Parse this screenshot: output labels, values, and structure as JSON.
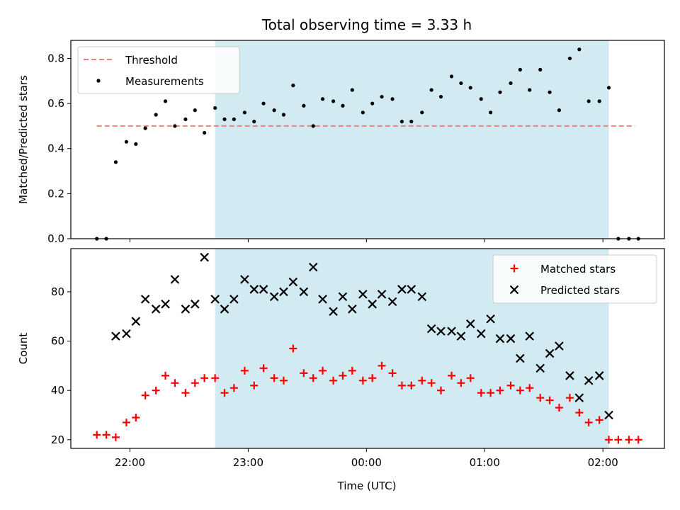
{
  "chart_data": {
    "type": "scatter",
    "title": "Total observing time = 3.33 h",
    "xlabel": "Time (UTC)",
    "x_tick_labels": [
      {
        "value": 22,
        "label": "22:00"
      },
      {
        "value": 23,
        "label": "23:00"
      },
      {
        "value": 24,
        "label": "00:00"
      },
      {
        "value": 25,
        "label": "01:00"
      },
      {
        "value": 26,
        "label": "02:00"
      }
    ],
    "xlim": [
      21.5,
      26.52
    ],
    "shaded_interval": [
      22.72,
      26.05
    ],
    "colors": {
      "shade": "#add8e6",
      "threshold": "#f08080",
      "measurements": "#000000",
      "matched": "#ff0000",
      "predicted": "#000000"
    },
    "panels": [
      {
        "ylabel": "Matched/Predicted stars",
        "ylim": [
          0,
          0.88
        ],
        "yticks": [
          "0.0",
          "0.2",
          "0.4",
          "0.6",
          "0.8"
        ],
        "ytick_values": [
          0,
          0.2,
          0.4,
          0.6,
          0.8
        ],
        "legend_position": "upper left",
        "series": [
          {
            "name": "Threshold",
            "kind": "dashed-line",
            "x": [
              21.72,
              26.27
            ],
            "y": [
              0.5,
              0.5
            ]
          },
          {
            "name": "Measurements",
            "kind": "dot",
            "x": [
              21.72,
              21.8,
              21.88,
              21.97,
              22.05,
              22.13,
              22.22,
              22.3,
              22.38,
              22.47,
              22.55,
              22.63,
              22.72,
              22.8,
              22.88,
              22.97,
              23.05,
              23.13,
              23.22,
              23.3,
              23.38,
              23.47,
              23.55,
              23.63,
              23.72,
              23.8,
              23.88,
              23.97,
              24.05,
              24.13,
              24.22,
              24.3,
              24.38,
              24.47,
              24.55,
              24.63,
              24.72,
              24.8,
              24.88,
              24.97,
              25.05,
              25.13,
              25.22,
              25.3,
              25.38,
              25.47,
              25.55,
              25.63,
              25.72,
              25.8,
              25.88,
              25.97,
              26.05,
              26.13,
              26.22,
              26.3
            ],
            "y": [
              0,
              0,
              0.34,
              0.43,
              0.42,
              0.49,
              0.55,
              0.61,
              0.5,
              0.53,
              0.57,
              0.47,
              0.58,
              0.53,
              0.53,
              0.56,
              0.52,
              0.6,
              0.57,
              0.55,
              0.68,
              0.59,
              0.5,
              0.62,
              0.61,
              0.59,
              0.66,
              0.56,
              0.6,
              0.63,
              0.62,
              0.52,
              0.52,
              0.56,
              0.66,
              0.63,
              0.72,
              0.69,
              0.67,
              0.62,
              0.56,
              0.65,
              0.69,
              0.75,
              0.66,
              0.75,
              0.65,
              0.57,
              0.8,
              0.84,
              0.61,
              0.61,
              0.67,
              0,
              0,
              0
            ]
          }
        ]
      },
      {
        "ylabel": "Count",
        "ylim": [
          16.5,
          97.5
        ],
        "yticks": [
          "20",
          "40",
          "60",
          "80"
        ],
        "ytick_values": [
          20,
          40,
          60,
          80
        ],
        "legend_position": "upper right",
        "series": [
          {
            "name": "Matched stars",
            "kind": "plus",
            "x": [
              21.72,
              21.8,
              21.88,
              21.97,
              22.05,
              22.13,
              22.22,
              22.3,
              22.38,
              22.47,
              22.55,
              22.63,
              22.72,
              22.8,
              22.88,
              22.97,
              23.05,
              23.13,
              23.22,
              23.3,
              23.38,
              23.47,
              23.55,
              23.63,
              23.72,
              23.8,
              23.88,
              23.97,
              24.05,
              24.13,
              24.22,
              24.3,
              24.38,
              24.47,
              24.55,
              24.63,
              24.72,
              24.8,
              24.88,
              24.97,
              25.05,
              25.13,
              25.22,
              25.3,
              25.38,
              25.47,
              25.55,
              25.63,
              25.72,
              25.8,
              25.88,
              25.97,
              26.05,
              26.13,
              26.22,
              26.3
            ],
            "y": [
              22,
              22,
              21,
              27,
              29,
              38,
              40,
              46,
              43,
              39,
              43,
              45,
              45,
              39,
              41,
              48,
              42,
              49,
              45,
              44,
              57,
              47,
              45,
              48,
              44,
              46,
              48,
              44,
              45,
              50,
              47,
              42,
              42,
              44,
              43,
              40,
              46,
              43,
              45,
              39,
              39,
              40,
              42,
              40,
              41,
              37,
              36,
              33,
              37,
              31,
              27,
              28,
              20,
              20,
              20,
              20
            ]
          },
          {
            "name": "Predicted stars",
            "kind": "cross",
            "x": [
              21.88,
              21.97,
              22.05,
              22.13,
              22.22,
              22.3,
              22.38,
              22.47,
              22.55,
              22.63,
              22.72,
              22.8,
              22.88,
              22.97,
              23.05,
              23.13,
              23.22,
              23.3,
              23.38,
              23.47,
              23.55,
              23.63,
              23.72,
              23.8,
              23.88,
              23.97,
              24.05,
              24.13,
              24.22,
              24.3,
              24.38,
              24.47,
              24.55,
              24.63,
              24.72,
              24.8,
              24.88,
              24.97,
              25.05,
              25.13,
              25.22,
              25.3,
              25.38,
              25.47,
              25.55,
              25.63,
              25.72,
              25.8,
              25.88,
              25.97,
              26.05
            ],
            "y": [
              62,
              63,
              68,
              77,
              73,
              75,
              85,
              73,
              75,
              94,
              77,
              73,
              77,
              85,
              81,
              81,
              78,
              80,
              84,
              80,
              90,
              77,
              72,
              78,
              73,
              79,
              75,
              79,
              76,
              81,
              81,
              78,
              65,
              64,
              64,
              62,
              67,
              63,
              69,
              61,
              61,
              53,
              62,
              49,
              55,
              58,
              46,
              37,
              44,
              46,
              30
            ]
          }
        ]
      }
    ]
  }
}
